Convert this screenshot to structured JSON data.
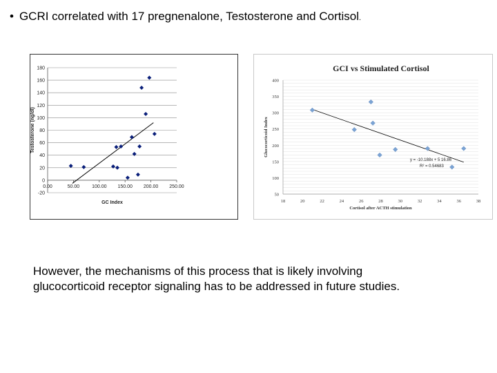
{
  "bullet": {
    "marker": "•",
    "text_main": "GCRI correlated with 17 pregnenalone, Testosterone  and Cortisol",
    "text_period": "."
  },
  "caption": {
    "line1": "However, the mechanisms of this process that is likely involving",
    "line2": "glucocorticoid receptor signaling has to be addressed in future studies."
  },
  "colors": {
    "chart1_marker": "#0a1f7a",
    "chart2_marker": "#7aa3d4",
    "trend": "#000000",
    "grid": "#e6e6e6"
  },
  "chart_data": [
    {
      "type": "scatter",
      "title": "",
      "xlabel": "GC Index",
      "ylabel": "Testosterone (ng/dl)",
      "xlim": [
        0,
        250
      ],
      "ylim": [
        -20,
        180
      ],
      "xticks": [
        "0.00",
        "50.00",
        "100.00",
        "150.00",
        "200.00",
        "250.00"
      ],
      "yticks": [
        "-20",
        "0",
        "20",
        "40",
        "60",
        "80",
        "100",
        "120",
        "140",
        "160",
        "180"
      ],
      "points": [
        {
          "x": 45,
          "y": 23
        },
        {
          "x": 70,
          "y": 21
        },
        {
          "x": 127,
          "y": 22
        },
        {
          "x": 135,
          "y": 20
        },
        {
          "x": 133,
          "y": 53
        },
        {
          "x": 142,
          "y": 54
        },
        {
          "x": 155,
          "y": 4
        },
        {
          "x": 163,
          "y": 69
        },
        {
          "x": 168,
          "y": 42
        },
        {
          "x": 175,
          "y": 9
        },
        {
          "x": 178,
          "y": 54
        },
        {
          "x": 182,
          "y": 148
        },
        {
          "x": 190,
          "y": 106
        },
        {
          "x": 197,
          "y": 164
        },
        {
          "x": 207,
          "y": 74
        }
      ],
      "trendline": [
        {
          "x": 48,
          "y": -5
        },
        {
          "x": 205,
          "y": 92
        }
      ]
    },
    {
      "type": "scatter",
      "title": "GCI vs Stimulated Cortisol",
      "xlabel": "Cortisol after ACTH stimulation",
      "ylabel": "Glucocorticoid Index",
      "xlim": [
        18,
        38
      ],
      "ylim": [
        50,
        400
      ],
      "xticks": [
        "18",
        "20",
        "22",
        "24",
        "26",
        "28",
        "30",
        "32",
        "34",
        "36",
        "38"
      ],
      "yticks": [
        "50",
        "100",
        "150",
        "200",
        "250",
        "300",
        "350",
        "400"
      ],
      "points": [
        {
          "x": 21,
          "y": 308
        },
        {
          "x": 25.3,
          "y": 248
        },
        {
          "x": 27,
          "y": 333
        },
        {
          "x": 27.2,
          "y": 268
        },
        {
          "x": 27.9,
          "y": 170
        },
        {
          "x": 29.5,
          "y": 187
        },
        {
          "x": 32.8,
          "y": 190
        },
        {
          "x": 35.3,
          "y": 133
        },
        {
          "x": 36.5,
          "y": 190
        }
      ],
      "trendline": [
        {
          "x": 21,
          "y": 310
        },
        {
          "x": 36.5,
          "y": 148
        }
      ],
      "equation": "y = -10.188x + 5 16.86",
      "r_squared": "R² = 0.54683"
    }
  ]
}
